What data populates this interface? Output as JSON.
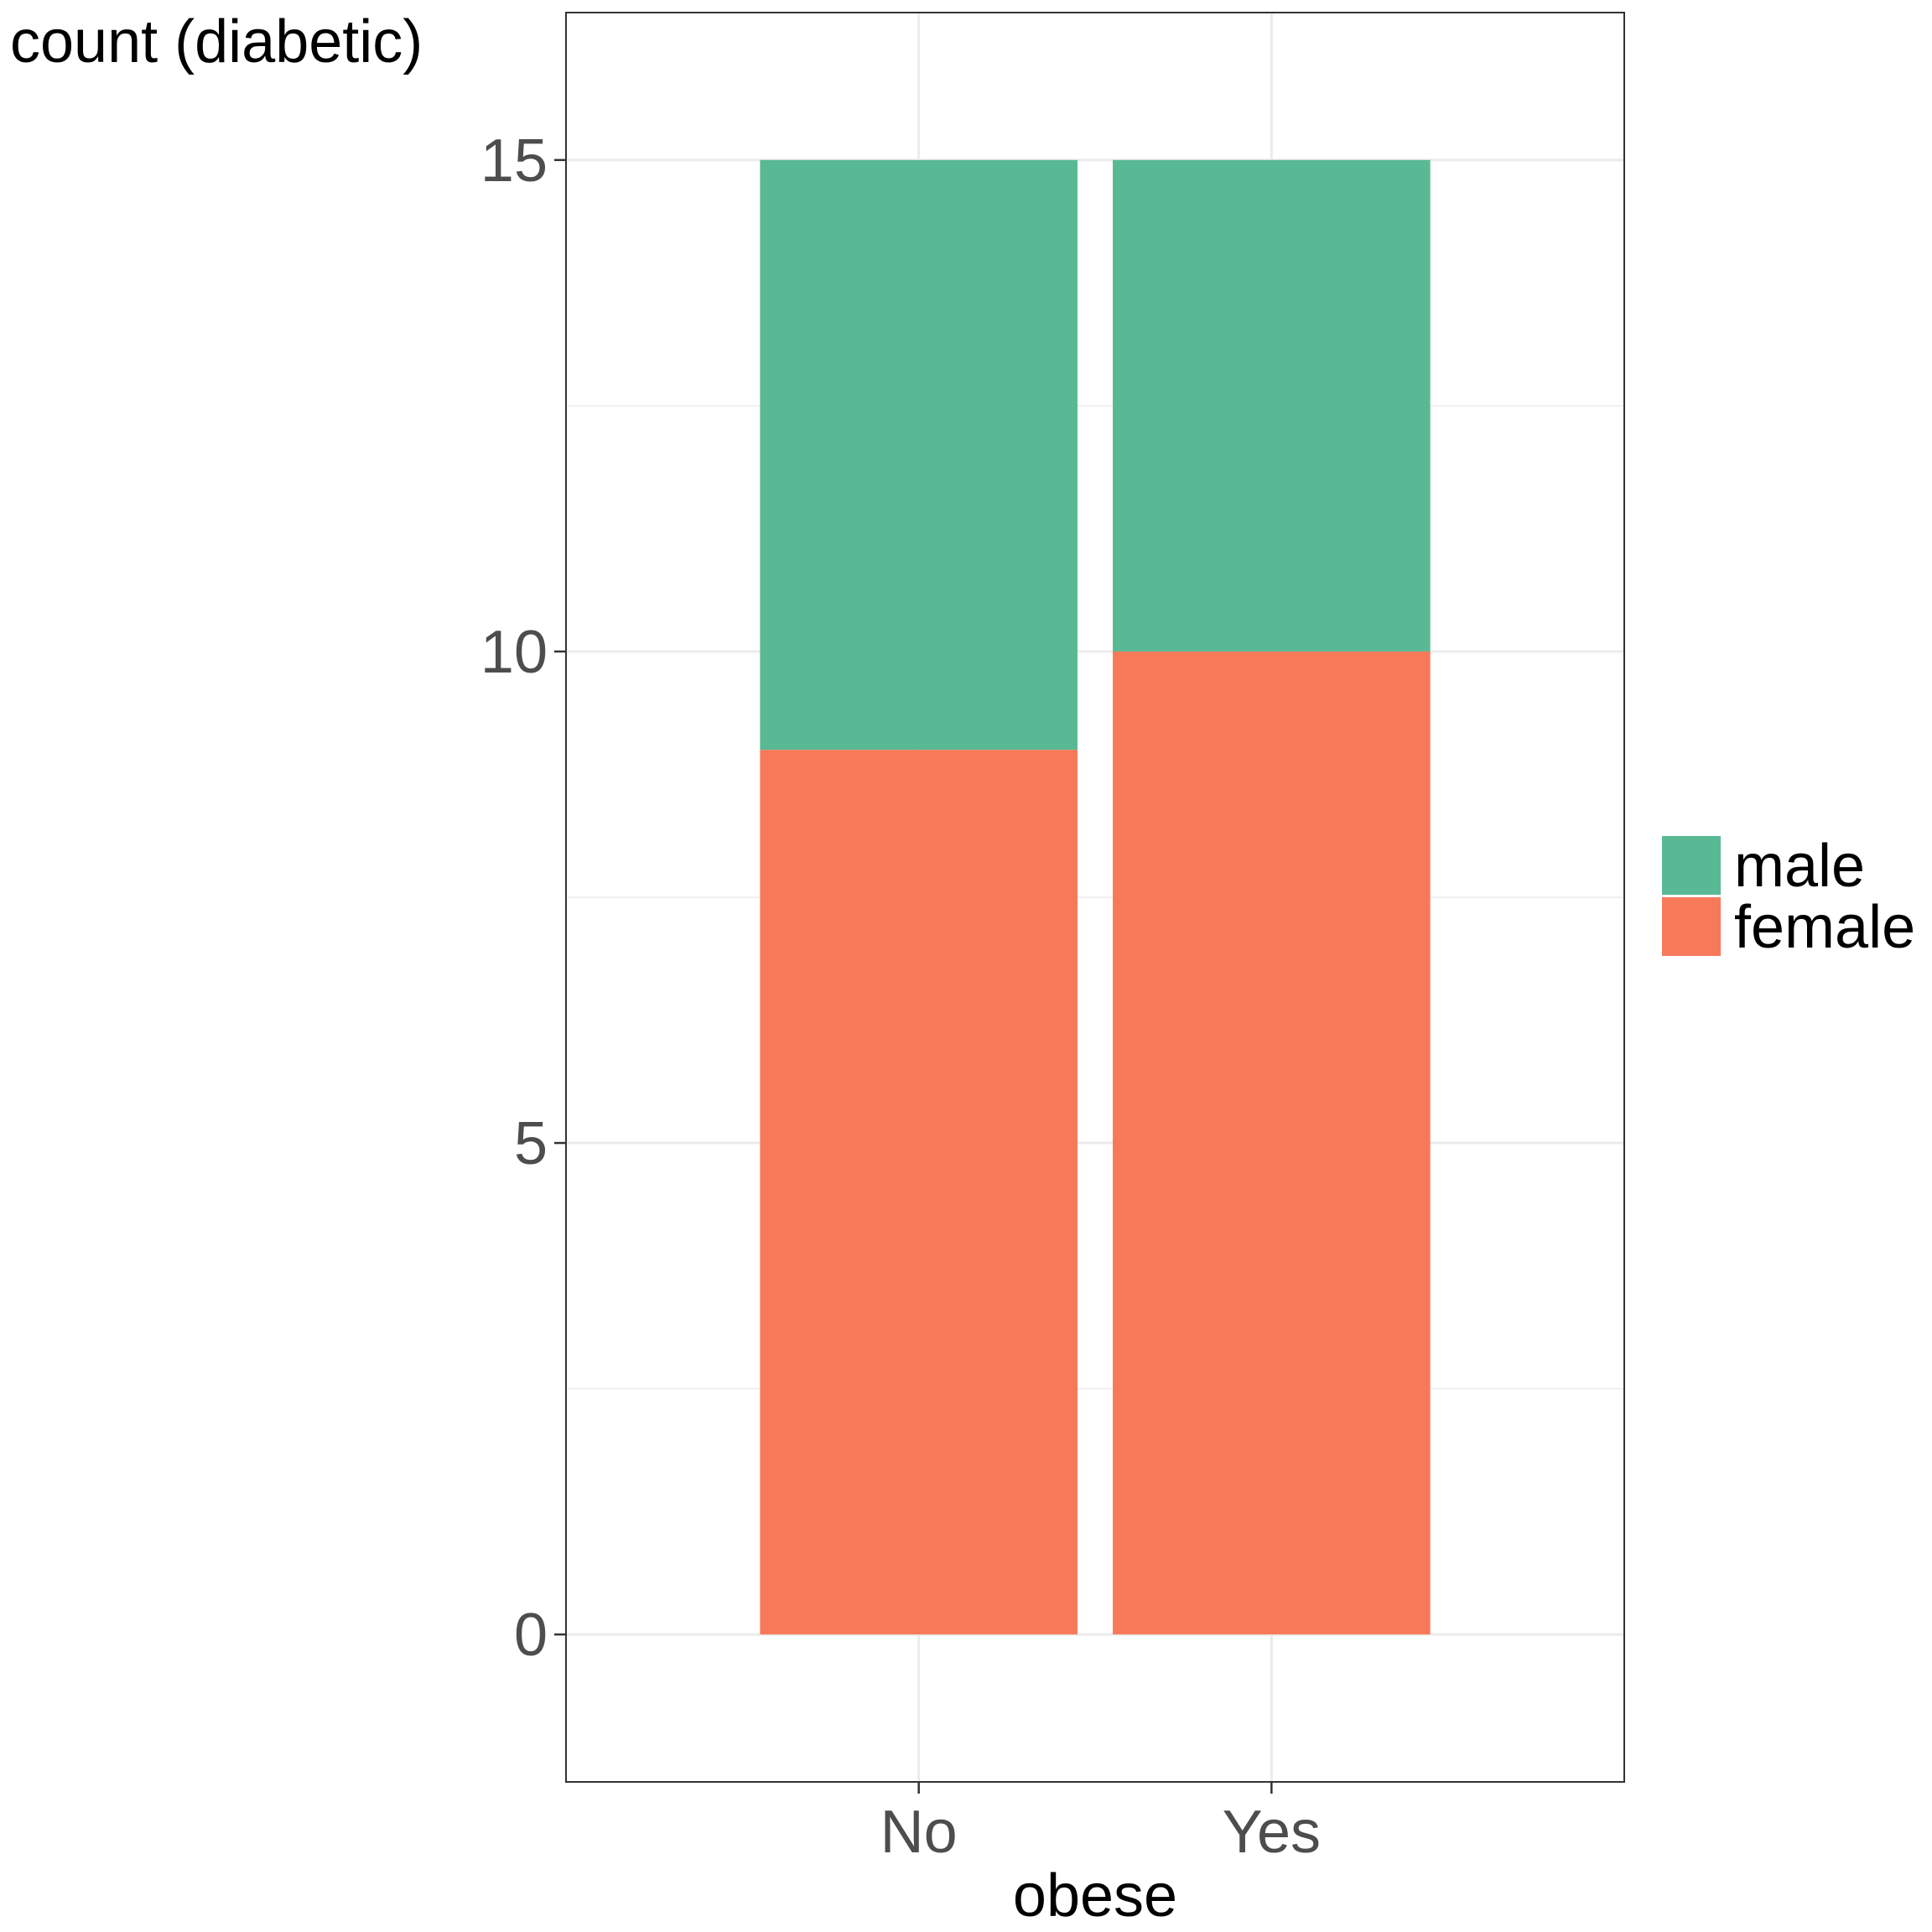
{
  "chart_data": {
    "type": "bar",
    "stacked": true,
    "categories": [
      "No",
      "Yes"
    ],
    "series": [
      {
        "name": "female",
        "values": [
          9,
          10
        ],
        "color": "#F8795A"
      },
      {
        "name": "male",
        "values": [
          6,
          5
        ],
        "color": "#59B994"
      }
    ],
    "xlabel": "obese",
    "ylabel": "count (diabetic)",
    "ylim": [
      -1.5,
      16.5
    ],
    "yticks": [
      0,
      5,
      10,
      15
    ],
    "yminor": [
      2.5,
      7.5,
      12.5
    ],
    "grid": true,
    "legend": {
      "position": "right",
      "entries": [
        {
          "label": "male",
          "color": "#59B994"
        },
        {
          "label": "female",
          "color": "#F8795A"
        }
      ]
    }
  }
}
